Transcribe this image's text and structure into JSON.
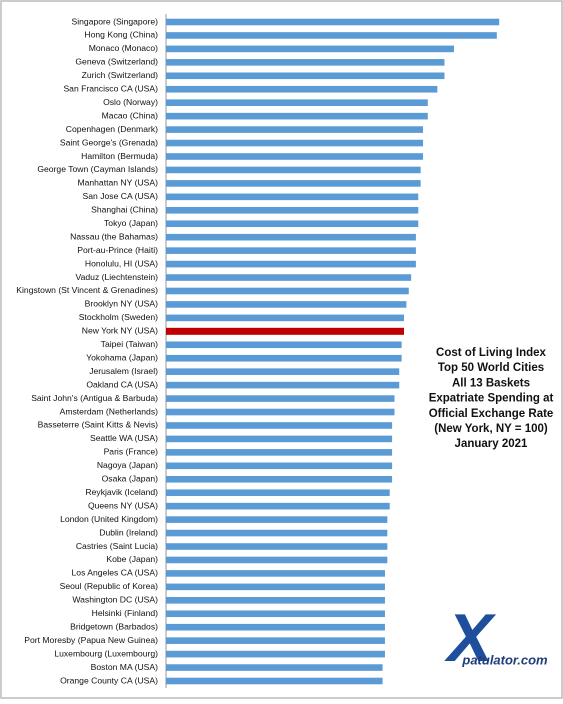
{
  "chart_data": {
    "type": "barh",
    "annotation": [
      "Cost of Living Index",
      "Top 50 World Cities",
      "All 13 Baskets",
      "Expatriate Spending  at",
      "Official Exchange Rate",
      "(New York, NY = 100)",
      "January 2021"
    ],
    "categories": [
      "Singapore (Singapore)",
      "Hong Kong (China)",
      "Monaco (Monaco)",
      "Geneva (Switzerland)",
      "Zurich (Switzerland)",
      "San Francisco CA (USA)",
      "Oslo (Norway)",
      "Macao (China)",
      "Copenhagen (Denmark)",
      "Saint George's (Grenada)",
      "Hamilton (Bermuda)",
      "George Town (Cayman Islands)",
      "Manhattan NY (USA)",
      "San Jose CA (USA)",
      "Shanghai (China)",
      "Tokyo (Japan)",
      "Nassau (the Bahamas)",
      "Port-au-Prince (Haiti)",
      "Honolulu, HI (USA)",
      "Vaduz (Liechtenstein)",
      "Kingstown (St Vincent & Grenadines)",
      "Brooklyn NY (USA)",
      "Stockholm (Sweden)",
      "New York NY (USA)",
      "Taipei (Taiwan)",
      "Yokohama (Japan)",
      "Jerusalem (Israel)",
      "Oakland CA (USA)",
      "Saint John's (Antigua & Barbuda)",
      "Amsterdam (Netherlands)",
      "Basseterre (Saint Kitts & Nevis)",
      "Seattle WA (USA)",
      "Paris (France)",
      "Nagoya (Japan)",
      "Osaka (Japan)",
      "Reykjavik (Iceland)",
      "Queens NY (USA)",
      "London (United Kingdom)",
      "Dublin (Ireland)",
      "Castries (Saint Lucia)",
      "Kobe (Japan)",
      "Los Angeles CA (USA)",
      "Seoul (Republic of Korea)",
      "Washington DC (USA)",
      "Helsinki (Finland)",
      "Bridgetown (Barbados)",
      "Port Moresby (Papua New Guinea)",
      "Luxembourg (Luxembourg)",
      "Boston MA (USA)",
      "Orange County CA (USA)"
    ],
    "values": [
      140,
      139,
      121,
      117,
      117,
      114,
      110,
      110,
      108,
      108,
      108,
      107,
      107,
      106,
      106,
      106,
      105,
      105,
      105,
      103,
      102,
      101,
      100,
      100,
      99,
      99,
      98,
      98,
      96,
      96,
      95,
      95,
      95,
      95,
      95,
      94,
      94,
      93,
      93,
      93,
      93,
      92,
      92,
      92,
      92,
      92,
      92,
      92,
      91,
      91
    ],
    "color": "#5b9bd5",
    "highlight": {
      "index": 23,
      "color": "#c00000"
    },
    "logo": {
      "mark": "X",
      "text": "patulator.com"
    }
  }
}
